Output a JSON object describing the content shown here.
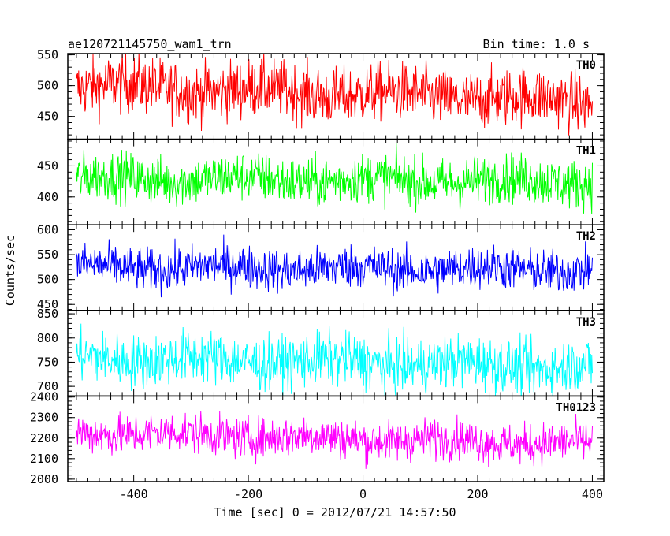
{
  "chart_data": {
    "type": "line",
    "title_left": "ae120721145750_wam1_trn",
    "title_right": "Bin time: 1.0 s",
    "xlabel": "Time [sec] 0 = 2012/07/21 14:57:50",
    "ylabel": "Counts/sec",
    "xlim": [
      -515,
      420
    ],
    "x_ticks": [
      -400,
      -200,
      0,
      200,
      400
    ],
    "x_data_range": [
      -500,
      400
    ],
    "bin_time": 1.0,
    "panels": [
      {
        "name": "TH0",
        "color": "#ff0000",
        "ylim": [
          413,
          552
        ],
        "y_ticks": [
          450,
          500,
          550
        ],
        "mean_start": 500,
        "mean_end": 475,
        "spread": 24
      },
      {
        "name": "TH1",
        "color": "#00ff00",
        "ylim": [
          355,
          493
        ],
        "y_ticks": [
          400,
          450
        ],
        "mean_start": 430,
        "mean_end": 425,
        "spread": 20
      },
      {
        "name": "TH2",
        "color": "#0000ff",
        "ylim": [
          438,
          610
        ],
        "y_ticks": [
          450,
          500,
          550,
          600
        ],
        "mean_start": 525,
        "mean_end": 520,
        "spread": 22
      },
      {
        "name": "TH3",
        "color": "#00ffff",
        "ylim": [
          680,
          857
        ],
        "y_ticks": [
          700,
          750,
          800,
          850
        ],
        "mean_start": 760,
        "mean_end": 740,
        "spread": 28
      },
      {
        "name": "TH0123",
        "color": "#ff00ff",
        "ylim": [
          1988,
          2405
        ],
        "y_ticks": [
          2000,
          2100,
          2200,
          2300,
          2400
        ],
        "mean_start": 2230,
        "mean_end": 2170,
        "spread": 50
      }
    ]
  }
}
